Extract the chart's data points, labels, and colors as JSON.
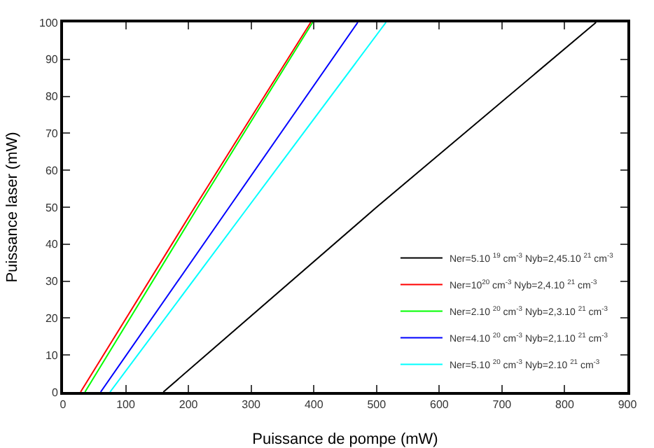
{
  "chart_data": {
    "type": "line",
    "xlabel": "Puissance de pompe (mW)",
    "ylabel": "Puissance laser (mW)",
    "xlim": [
      0,
      900
    ],
    "xticks": [
      0,
      100,
      200,
      300,
      400,
      500,
      600,
      700,
      800,
      900
    ],
    "ylim": [
      0,
      100
    ],
    "yticks": [
      0,
      10,
      20,
      30,
      40,
      50,
      60,
      70,
      80,
      90,
      100
    ],
    "grid": false,
    "legend": "bottom right",
    "marker": "none",
    "line_style": "solid",
    "series": [
      {
        "name": "Ner=5.10 $^{19}$ cm$^{-3}$ Nyb=2,45.10 $^{21}$ cm$^{-3}$",
        "color": "#000000",
        "x": [
          160,
          500,
          850
        ],
        "values": [
          0,
          50,
          100
        ]
      },
      {
        "name": "Ner=10$^{20}$ cm$^{-3}$ Nyb=2,4.10 $^{21}$ cm$^{-3}$",
        "color": "#ff0000",
        "x": [
          28,
          210,
          395
        ],
        "values": [
          0,
          50,
          100
        ]
      },
      {
        "name": "Ner=2.10 $^{20}$ cm$^{-3}$ Nyb=2,3.10 $^{21}$ cm$^{-3}$",
        "color": "#00ff00",
        "x": [
          35,
          215,
          398
        ],
        "values": [
          0,
          50,
          100
        ]
      },
      {
        "name": "Ner=4.10 $^{20}$ cm$^{-3}$ Nyb=2,1.10 $^{21}$ cm$^{-3}$",
        "color": "#0000ff",
        "x": [
          60,
          265,
          470
        ],
        "values": [
          0,
          50,
          100
        ]
      },
      {
        "name": "Ner=5.10 $^{20}$ cm$^{-3}$ Nyb=2.10 $^{21}$ cm$^{-3}$",
        "color": "#00ffff",
        "x": [
          75,
          295,
          515
        ],
        "values": [
          0,
          50,
          100
        ]
      }
    ]
  }
}
